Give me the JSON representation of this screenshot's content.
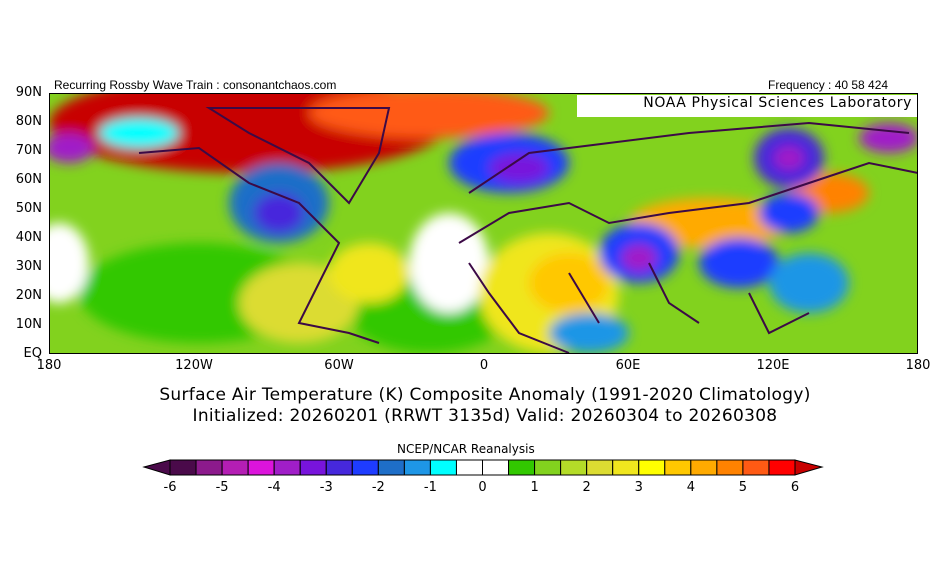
{
  "header": {
    "left": "Recurring Rossby Wave Train : consonantchaos.com",
    "right": "Frequency : 40 58 424",
    "lab_box": "NOAA Physical Sciences Laboratory"
  },
  "map": {
    "lat_labels": [
      "90N",
      "80N",
      "70N",
      "60N",
      "50N",
      "40N",
      "30N",
      "20N",
      "10N",
      "EQ"
    ],
    "lon_labels": [
      "180",
      "120W",
      "60W",
      "0",
      "60E",
      "120E",
      "180"
    ]
  },
  "titles": {
    "line1": "Surface Air Temperature (K) Composite Anomaly (1991-2020 Climatology)",
    "line2": "Initialized: 20260201 (RRWT 3135d) Valid: 20260304 to 20260308"
  },
  "colorbar": {
    "title": "NCEP/NCAR Reanalysis",
    "labels": [
      "-6",
      "-5",
      "-4",
      "-3",
      "-2",
      "-1",
      "0",
      "1",
      "2",
      "3",
      "4",
      "5",
      "6"
    ],
    "range": [
      -6,
      6
    ],
    "step": 0.5,
    "colors": [
      "#4a0a4a",
      "#8c1a8c",
      "#b41eb4",
      "#dc14dc",
      "#a01ec8",
      "#7814dc",
      "#4628dc",
      "#1e3cff",
      "#1e6ec8",
      "#1e96e6",
      "#00ffff",
      "#ffffff",
      "#ffffff",
      "#32c800",
      "#82d21e",
      "#b4dc28",
      "#dcdc32",
      "#f0e61e",
      "#ffff00",
      "#ffc800",
      "#ffaa00",
      "#ff8200",
      "#ff5a14",
      "#ff0000"
    ],
    "low_color": "#4a0a4a",
    "high_color": "#c80000"
  }
}
